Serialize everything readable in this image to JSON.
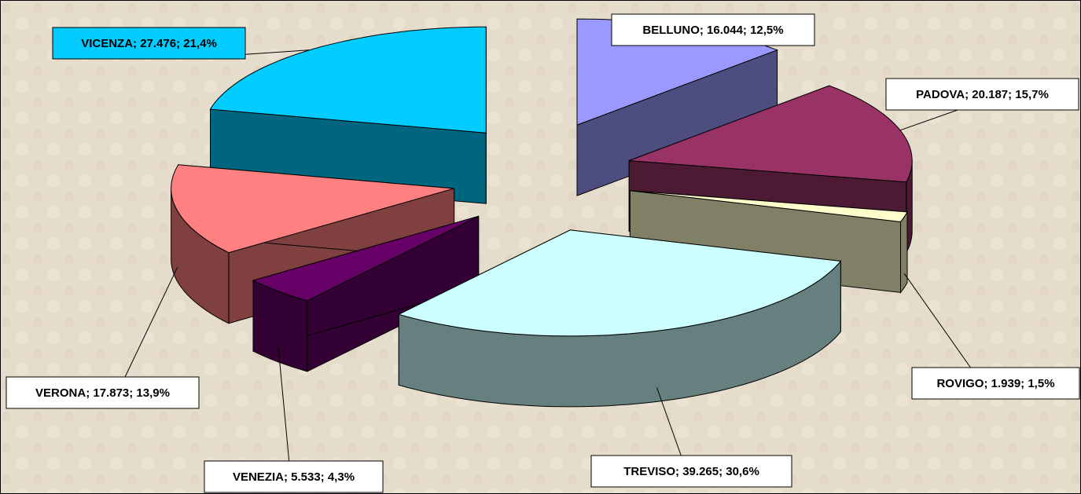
{
  "chart_data": {
    "type": "pie3d",
    "values": [
      16044,
      20187,
      1939,
      39265,
      5533,
      17873,
      27476
    ],
    "value_labels": [
      "BELLUNO; 16.044; 12,5%",
      "PADOVA; 20.187; 15,7%",
      "ROVIGO; 1.939; 1,5%",
      "TREVISO; 39.265; 30,6%",
      "VENEZIA; 5.533; 4,3%",
      "VERONA; 17.873; 13,9%",
      "VICENZA; 27.476; 21,4%"
    ],
    "colors": [
      "#9999ff",
      "#993366",
      "#ffffcc",
      "#ccffff",
      "#660066",
      "#ff8080",
      "#00ccff"
    ],
    "side_colors": [
      "#4d4d80",
      "#4d1a33",
      "#808066",
      "#668080",
      "#330033",
      "#804040",
      "#006680"
    ]
  }
}
